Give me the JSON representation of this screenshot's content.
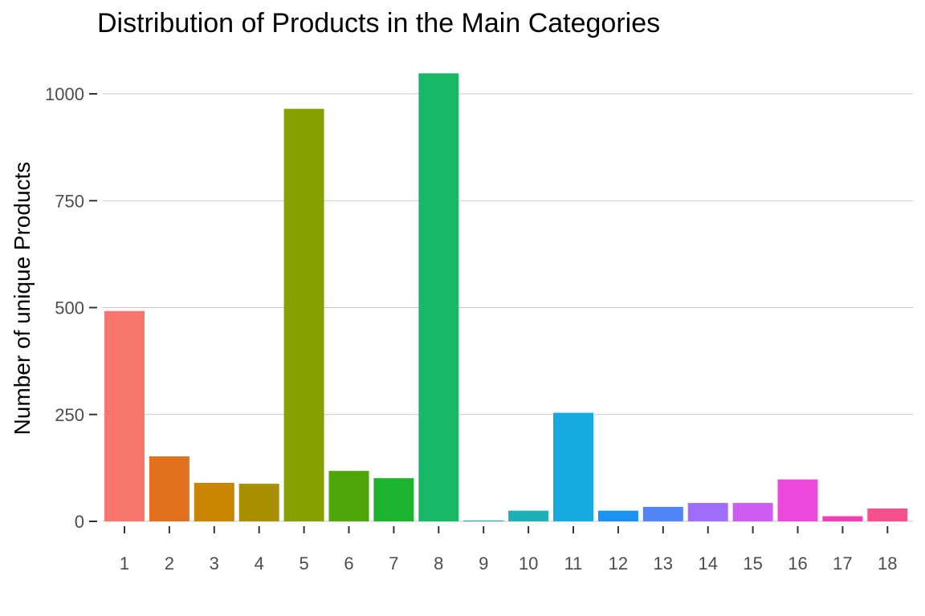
{
  "chart_data": {
    "type": "bar",
    "title": "Distribution of Products in the Main Categories",
    "xlabel": "",
    "ylabel": "Number of unique Products",
    "categories": [
      "1",
      "2",
      "3",
      "4",
      "5",
      "6",
      "7",
      "8",
      "9",
      "10",
      "11",
      "12",
      "13",
      "14",
      "15",
      "16",
      "17",
      "18"
    ],
    "values": [
      492,
      152,
      90,
      88,
      965,
      118,
      101,
      1048,
      2,
      25,
      254,
      25,
      34,
      43,
      43,
      98,
      12,
      30
    ],
    "colors": [
      "#F8766D",
      "#E58700",
      "#C99800",
      "#A3A500",
      "#6BB100",
      "#00BA38",
      "#00BF7D",
      "#00C0AF",
      "#00BCD8",
      "#00B0F6",
      "#619CFF",
      "#B983FF",
      "#E76BF3",
      "#FD61D1",
      "#FF67A4",
      "#F8766D",
      "#E58700",
      "#C99800"
    ],
    "ylim": [
      0,
      1050
    ],
    "yticks": [
      0,
      250,
      500,
      750,
      1000
    ],
    "grid": true,
    "legend": "none"
  }
}
